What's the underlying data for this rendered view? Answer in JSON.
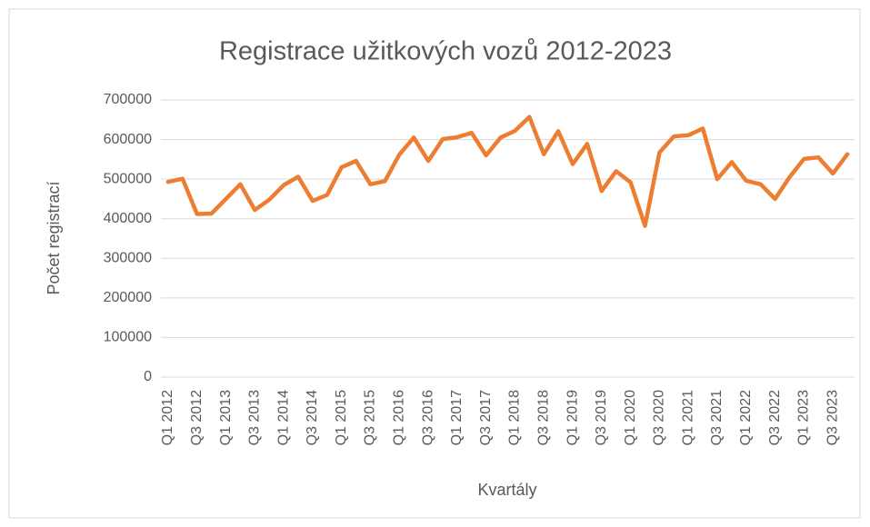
{
  "chart_data": {
    "type": "line",
    "title": "Registrace užitkových vozů 2012-2023",
    "x_label": "Kvartály",
    "y_label": "Počet registrací",
    "categories": [
      "Q1 2012",
      null,
      "Q3 2012",
      null,
      "Q1 2013",
      null,
      "Q3 2013",
      null,
      "Q1 2014",
      null,
      "Q3 2014",
      null,
      "Q1 2015",
      null,
      "Q3 2015",
      null,
      "Q1 2016",
      null,
      "Q3 2016",
      null,
      "Q1 2017",
      null,
      "Q3 2017",
      null,
      "Q1 2018",
      null,
      "Q3 2018",
      null,
      "Q1 2019",
      null,
      "Q3 2019",
      null,
      "Q1 2020",
      null,
      "Q3 2020",
      null,
      "Q1 2021",
      null,
      "Q3 2021",
      null,
      "Q1 2022",
      null,
      "Q3 2022",
      null,
      "Q1 2023",
      null,
      "Q3 2023",
      null
    ],
    "series": [
      {
        "name": "Počet registrací",
        "color": "#ed7d31",
        "values": [
          493000,
          501000,
          412000,
          413000,
          450000,
          487000,
          422000,
          448000,
          485000,
          506000,
          445000,
          460000,
          530000,
          546000,
          487000,
          495000,
          562000,
          605000,
          546000,
          601000,
          606000,
          617000,
          560000,
          605000,
          622000,
          657000,
          563000,
          621000,
          538000,
          589000,
          470000,
          520000,
          492000,
          382000,
          567000,
          608000,
          611000,
          628000,
          500000,
          543000,
          496000,
          487000,
          450000,
          505000,
          551000,
          555000,
          514000,
          563000
        ]
      }
    ],
    "ylim": [
      0,
      700000
    ],
    "yticks": [
      0,
      100000,
      200000,
      300000,
      400000,
      500000,
      600000,
      700000
    ],
    "grid": true
  }
}
